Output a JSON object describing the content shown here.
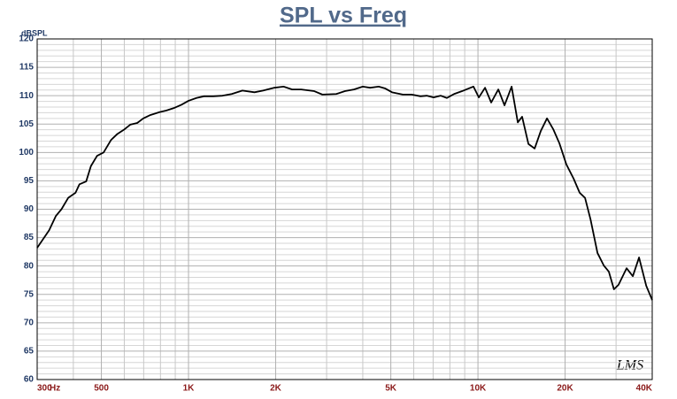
{
  "chart_data": {
    "type": "line",
    "title": "SPL vs Freq",
    "y_label": "dBSPL",
    "x_unit": "Hz",
    "watermark": "LMS",
    "log_x": true,
    "grid": true,
    "color": "#000000",
    "xlim": [
      300,
      40000
    ],
    "ylim": [
      60,
      120
    ],
    "xticks": [
      300,
      500,
      {
        "value": 1000,
        "label": "1K"
      },
      {
        "value": 2000,
        "label": "2K"
      },
      {
        "value": 5000,
        "label": "5K"
      },
      {
        "value": 10000,
        "label": "10K"
      },
      {
        "value": 20000,
        "label": "20K"
      },
      {
        "value": 40000,
        "label": "40K"
      }
    ],
    "xminor": [
      400,
      600,
      700,
      800,
      900,
      3000,
      4000,
      6000,
      7000,
      8000,
      9000,
      30000
    ],
    "yticks": [
      60,
      65,
      70,
      75,
      80,
      85,
      90,
      95,
      100,
      105,
      110,
      115,
      120
    ],
    "yminor": [
      61,
      62,
      63,
      64,
      66,
      67,
      68,
      69,
      71,
      72,
      73,
      74,
      76,
      77,
      78,
      79,
      81,
      82,
      83,
      84,
      86,
      87,
      88,
      89,
      91,
      92,
      93,
      94,
      96,
      97,
      98,
      99,
      101,
      102,
      103,
      104,
      106,
      107,
      108,
      109,
      111,
      112,
      113,
      114,
      116,
      117,
      118,
      119
    ],
    "x": [
      300,
      330,
      348,
      364,
      384,
      407,
      420,
      443,
      460,
      483,
      509,
      540,
      566,
      598,
      629,
      665,
      698,
      739,
      794,
      839,
      888,
      945,
      1000,
      1065,
      1131,
      1217,
      1310,
      1410,
      1535,
      1690,
      1810,
      1980,
      2130,
      2280,
      2450,
      2720,
      2900,
      3240,
      3470,
      3730,
      4000,
      4240,
      4540,
      4770,
      5050,
      5500,
      5900,
      6330,
      6650,
      7030,
      7440,
      7810,
      8270,
      8810,
      9320,
      9650,
      10070,
      10580,
      11110,
      11760,
      12350,
      13070,
      13730,
      14210,
      14940,
      15700,
      16490,
      17320,
      18200,
      19120,
      20200,
      21400,
      22460,
      23440,
      24490,
      25880,
      27200,
      28330,
      29500,
      30600,
      32620,
      34280,
      36020,
      38150,
      40000
    ],
    "values": [
      83.2,
      86.3,
      88.8,
      90,
      92,
      92.9,
      94.4,
      94.9,
      97.6,
      99.4,
      100,
      102.2,
      103.2,
      104,
      104.9,
      105.2,
      106,
      106.6,
      107.1,
      107.4,
      107.8,
      108.4,
      109.1,
      109.6,
      109.9,
      109.9,
      110,
      110.3,
      110.9,
      110.6,
      110.9,
      111.4,
      111.6,
      111.1,
      111.1,
      110.8,
      110.2,
      110.3,
      110.8,
      111.1,
      111.6,
      111.4,
      111.6,
      111.3,
      110.6,
      110.2,
      110.2,
      109.9,
      110,
      109.7,
      110,
      109.6,
      110.3,
      110.8,
      111.3,
      111.6,
      109.7,
      111.4,
      108.8,
      111.1,
      108.3,
      111.6,
      105.3,
      106.3,
      101.5,
      100.7,
      103.8,
      106,
      104.1,
      101.6,
      97.9,
      95.4,
      92.9,
      92,
      88.2,
      82.3,
      80.1,
      79,
      75.9,
      76.7,
      79.6,
      78.2,
      81.5,
      76.5,
      74
    ]
  }
}
